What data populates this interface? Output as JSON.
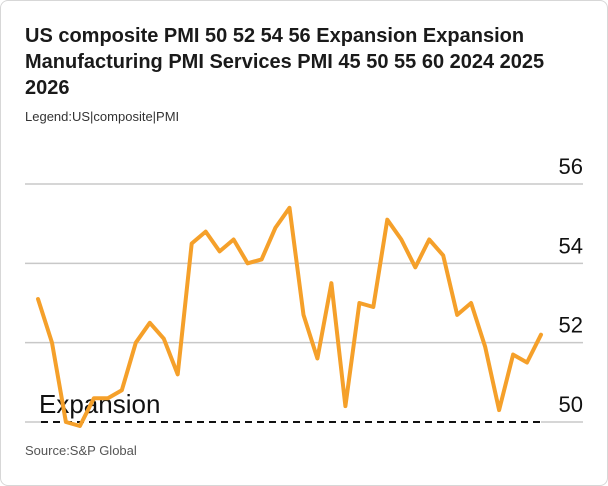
{
  "title": "US composite PMI 50 52 54 56 Expansion Expansion Manufacturing PMI Services PMI 45 50 55 60 2024 2025 2026",
  "legend": "Legend:US|composite|PMI",
  "source": "Source:S&P Global",
  "colors": {
    "line": "#f5a02a",
    "grid": "#c8c8c8",
    "threshold": "#111111",
    "text": "#111111"
  },
  "chart_data": {
    "type": "line",
    "ylim": [
      50,
      56
    ],
    "y_ticks": [
      56,
      54,
      52,
      50
    ],
    "grid": true,
    "threshold": {
      "value": 50,
      "label": "Expansion",
      "style": "dashed"
    },
    "series": [
      {
        "values": [
          53.1,
          52.0,
          50.0,
          49.9,
          50.6,
          50.6,
          50.8,
          52.0,
          52.5,
          52.1,
          51.2,
          54.5,
          54.8,
          54.3,
          54.6,
          54.0,
          54.1,
          54.9,
          55.4,
          52.7,
          51.6,
          53.5,
          50.4,
          53.0,
          52.9,
          55.1,
          54.6,
          53.9,
          54.6,
          54.2,
          52.7,
          53.0,
          51.9,
          50.3,
          51.7,
          51.5,
          52.2
        ]
      }
    ]
  }
}
